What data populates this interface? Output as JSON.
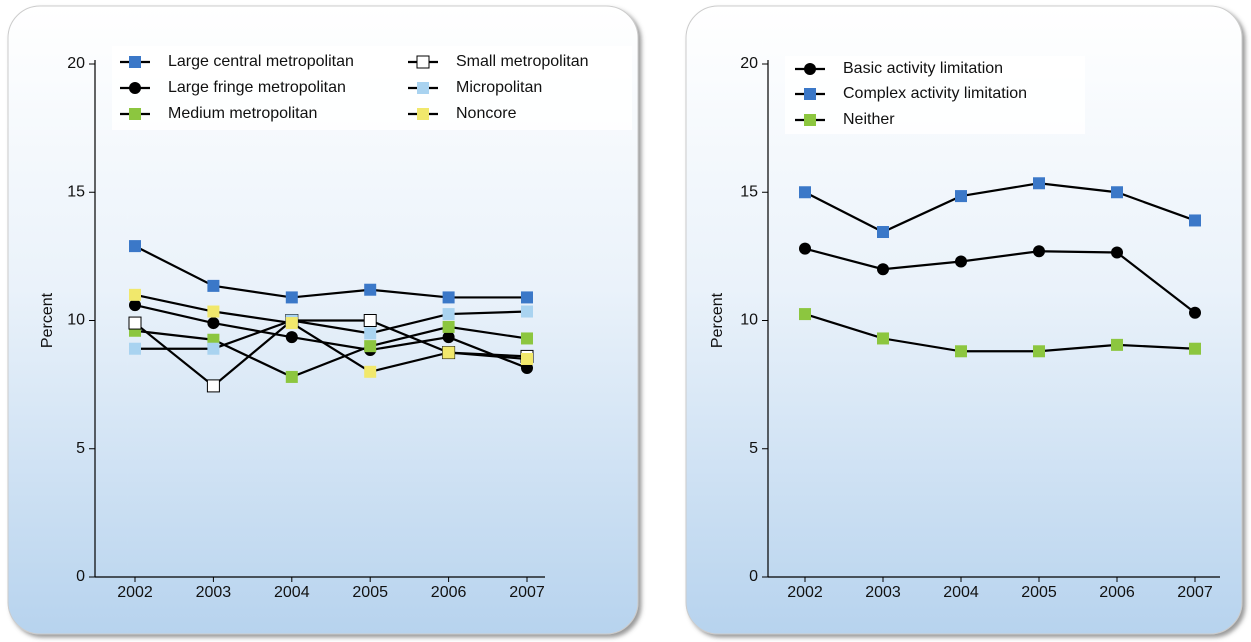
{
  "chart_data": [
    {
      "type": "line",
      "y_label": "Percent",
      "line_color": "#000000",
      "categories": [
        "2002",
        "2003",
        "2004",
        "2005",
        "2006",
        "2007"
      ],
      "ylim": [
        0,
        20
      ],
      "yticks": [
        0,
        5,
        10,
        15,
        20
      ],
      "series": [
        {
          "name": "Large central metropolitan",
          "color": "#3b78c8",
          "marker": "square",
          "values": [
            12.9,
            11.35,
            10.9,
            11.2,
            10.9,
            10.9
          ]
        },
        {
          "name": "Large fringe metropolitan",
          "color": "#000000",
          "marker": "circle",
          "values": [
            10.6,
            9.9,
            9.35,
            8.85,
            9.35,
            8.15
          ]
        },
        {
          "name": "Medium metropolitan",
          "color": "#8cc63f",
          "marker": "square",
          "values": [
            9.6,
            9.25,
            7.8,
            9.0,
            9.75,
            9.3
          ]
        },
        {
          "name": "Small metropolitan",
          "color": "#ffffff",
          "marker": "square",
          "edge": "#000000",
          "values": [
            9.9,
            7.45,
            10.0,
            10.0,
            8.75,
            8.6
          ]
        },
        {
          "name": "Micropolitan",
          "color": "#a9d3f0",
          "marker": "square",
          "values": [
            8.9,
            8.9,
            10.0,
            9.5,
            10.25,
            10.35
          ]
        },
        {
          "name": "Noncore",
          "color": "#f1e86c",
          "marker": "square",
          "values": [
            11.0,
            10.35,
            9.9,
            8.0,
            8.75,
            8.5
          ]
        }
      ]
    },
    {
      "type": "line",
      "y_label": "Percent",
      "line_color": "#000000",
      "categories": [
        "2002",
        "2003",
        "2004",
        "2005",
        "2006",
        "2007"
      ],
      "ylim": [
        0,
        20
      ],
      "yticks": [
        0,
        5,
        10,
        15,
        20
      ],
      "series": [
        {
          "name": "Basic activity limitation",
          "color": "#000000",
          "marker": "circle",
          "values": [
            12.8,
            12.0,
            12.3,
            12.7,
            12.65,
            10.3
          ]
        },
        {
          "name": "Complex activity limitation",
          "color": "#3b78c8",
          "marker": "square",
          "values": [
            15.0,
            13.45,
            14.85,
            15.35,
            15.0,
            13.9
          ]
        },
        {
          "name": "Neither",
          "color": "#8cc63f",
          "marker": "square",
          "values": [
            10.25,
            9.3,
            8.8,
            8.8,
            9.05,
            8.9
          ]
        }
      ]
    }
  ]
}
